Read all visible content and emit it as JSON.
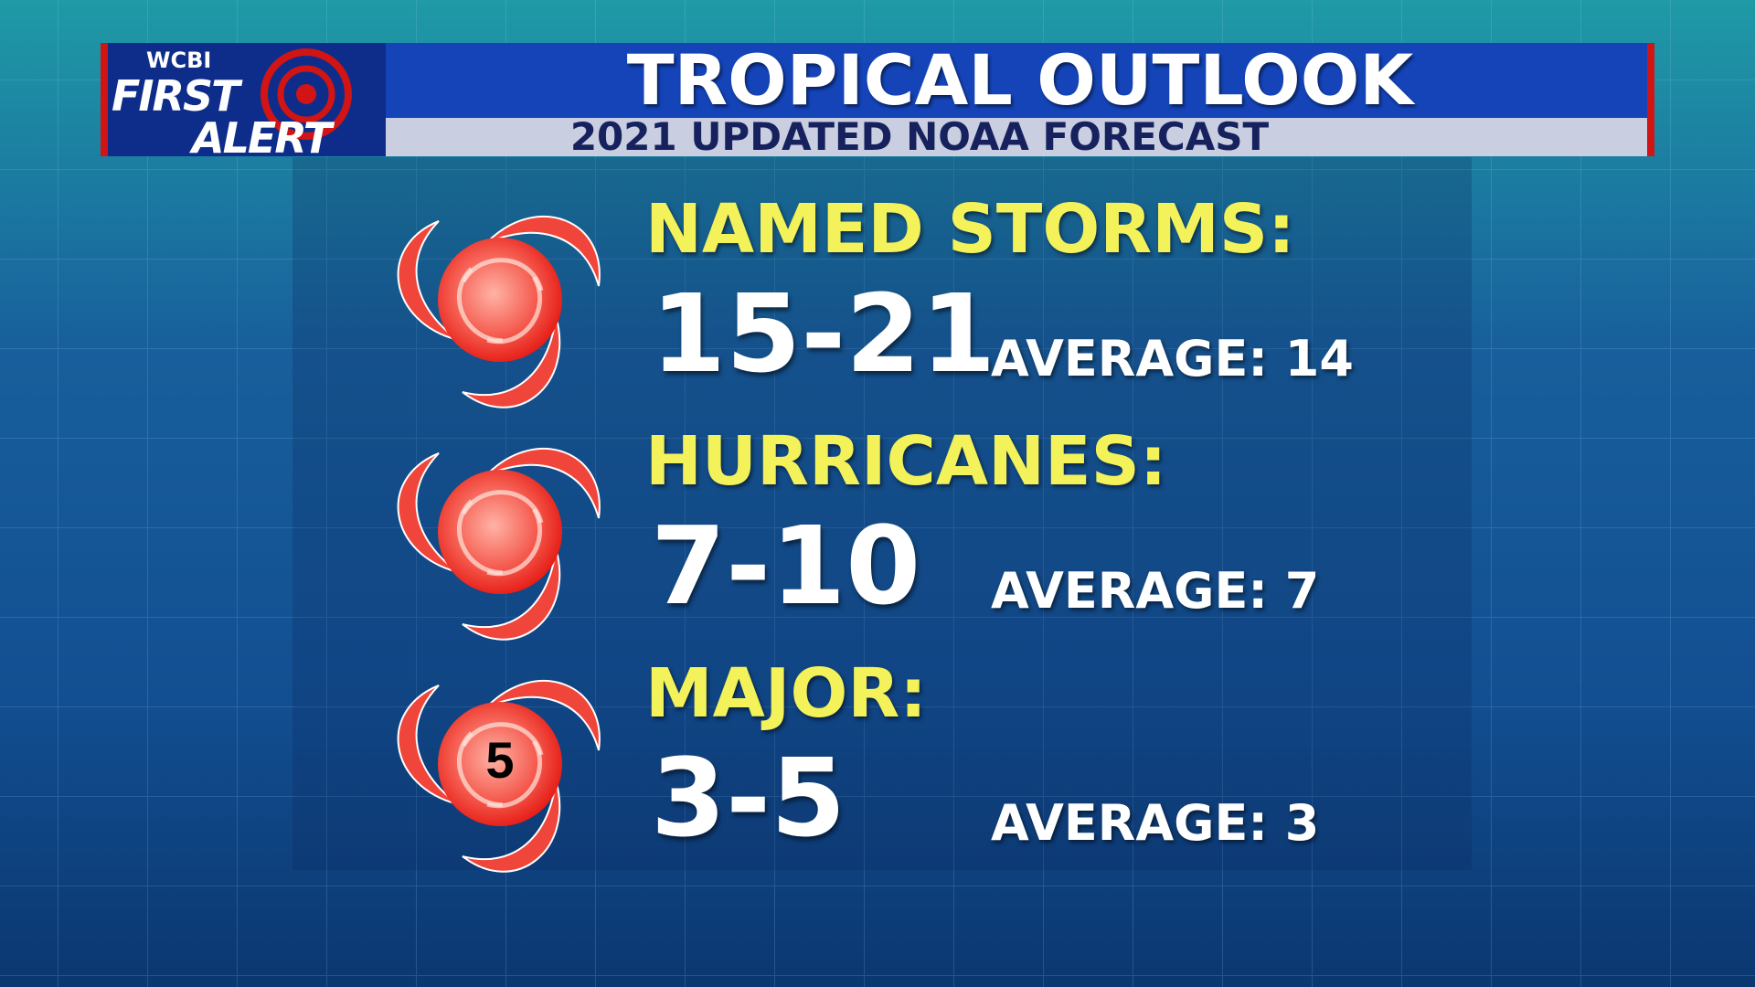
{
  "header": {
    "logo": {
      "station": "WCBI",
      "line1": "FIRST",
      "line2": "ALERT"
    },
    "title": "TROPICAL OUTLOOK",
    "subtitle": "2021 UPDATED NOAA FORECAST"
  },
  "rows": [
    {
      "label": "NAMED STORMS:",
      "forecast": "15-21",
      "average": "AVERAGE: 14"
    },
    {
      "label": "HURRICANES:",
      "forecast": "7-10",
      "average": "AVERAGE: 7"
    },
    {
      "label": "MAJOR:",
      "forecast": "3-5",
      "average": "AVERAGE: 3",
      "icon_label": "5"
    }
  ]
}
